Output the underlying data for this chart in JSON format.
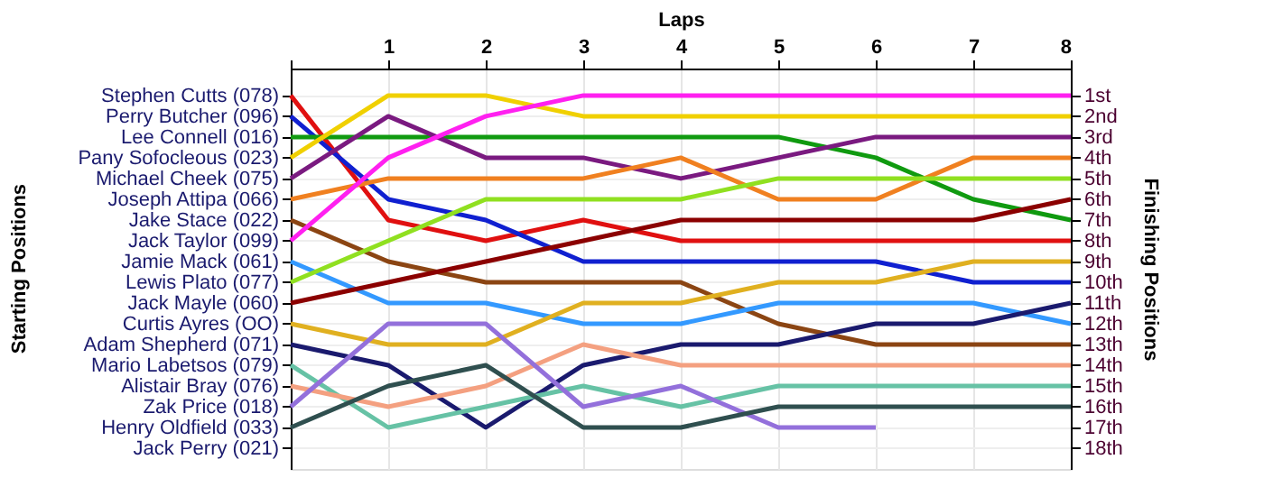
{
  "chart_data": {
    "type": "line",
    "xlabel": "Laps",
    "ylabel": "Finishing Positions",
    "annotations": [
      "Starting Positions"
    ],
    "x": [
      0,
      1,
      2,
      3,
      4,
      5,
      6,
      7,
      8
    ],
    "xlim": [
      0,
      8
    ],
    "xticks": [
      {
        "value": 0,
        "label": null
      },
      1,
      2,
      3,
      4,
      5,
      6,
      7,
      8
    ],
    "ylim": [
      19,
      -0.3
    ],
    "yticks": [
      {
        "value": 1,
        "label": "1st"
      },
      {
        "value": 2,
        "label": "2nd"
      },
      {
        "value": 3,
        "label": "3rd"
      },
      {
        "value": 4,
        "label": "4th"
      },
      {
        "value": 5,
        "label": "5th"
      },
      {
        "value": 6,
        "label": "6th"
      },
      {
        "value": 7,
        "label": "7th"
      },
      {
        "value": 8,
        "label": "8th"
      },
      {
        "value": 9,
        "label": "9th"
      },
      {
        "value": 10,
        "label": "10th"
      },
      {
        "value": 11,
        "label": "11th"
      },
      {
        "value": 12,
        "label": "12th"
      },
      {
        "value": 13,
        "label": "13th"
      },
      {
        "value": 14,
        "label": "14th"
      },
      {
        "value": 15,
        "label": "15th"
      },
      {
        "value": 16,
        "label": "16th"
      },
      {
        "value": 17,
        "label": "17th"
      },
      {
        "value": 18,
        "label": "18th"
      }
    ],
    "y2_categories": [
      "Stephen Cutts (078)",
      "Perry Butcher (096)",
      "Lee Connell (016)",
      "Pany Sofocleous (023)",
      "Michael Cheek (075)",
      "Joseph Attipa (066)",
      "Jake Stace (022)",
      "Jack Taylor (099)",
      "Jamie Mack (061)",
      "Lewis Plato (077)",
      "Jack Mayle (060)",
      "Curtis Ayres (OO)",
      "Adam Shepherd (071)",
      "Mario Labetsos (079)",
      "Alistair Bray (076)",
      "Zak Price (018)",
      "Henry Oldfield (033)",
      "Jack Perry (021)"
    ],
    "grid": true,
    "legend": false,
    "marker": "none",
    "line_style": "solid",
    "series": [
      {
        "color": "#e01010",
        "values": [
          1,
          7,
          8,
          7,
          8,
          8,
          8,
          8,
          8
        ]
      },
      {
        "color": "#1020d0",
        "values": [
          2,
          6,
          7,
          9,
          9,
          9,
          9,
          10,
          10
        ]
      },
      {
        "color": "#109a10",
        "values": [
          3,
          3,
          3,
          3,
          3,
          3,
          4,
          6,
          7
        ]
      },
      {
        "color": "#f0d000",
        "values": [
          4,
          1,
          1,
          2,
          2,
          2,
          2,
          2,
          2
        ]
      },
      {
        "color": "#7a1a80",
        "values": [
          5,
          2,
          4,
          4,
          5,
          4,
          3,
          3,
          3
        ]
      },
      {
        "color": "#f08020",
        "values": [
          6,
          5,
          5,
          5,
          4,
          6,
          6,
          4,
          4
        ]
      },
      {
        "color": "#8b4513",
        "values": [
          7,
          9,
          10,
          10,
          10,
          12,
          13,
          13,
          13
        ]
      },
      {
        "color": "#ff20f0",
        "values": [
          8,
          4,
          2,
          1,
          1,
          1,
          1,
          1,
          1
        ]
      },
      {
        "color": "#3399ff",
        "values": [
          9,
          11,
          11,
          12,
          12,
          11,
          11,
          11,
          12
        ]
      },
      {
        "color": "#90e020",
        "values": [
          10,
          8,
          6,
          6,
          6,
          5,
          5,
          5,
          5
        ]
      },
      {
        "color": "#8b0000",
        "values": [
          11,
          10,
          9,
          8,
          7,
          7,
          7,
          7,
          6
        ]
      },
      {
        "color": "#e0b020",
        "values": [
          12,
          13,
          13,
          11,
          11,
          10,
          10,
          9,
          9
        ]
      },
      {
        "color": "#1a1a6e",
        "values": [
          13,
          14,
          17,
          14,
          13,
          13,
          12,
          12,
          11
        ]
      },
      {
        "color": "#66c2a5",
        "values": [
          14,
          17,
          16,
          15,
          16,
          15,
          15,
          15,
          15
        ]
      },
      {
        "color": "#f4a080",
        "values": [
          15,
          16,
          15,
          13,
          14,
          14,
          14,
          14,
          14
        ]
      },
      {
        "color": "#9370db",
        "values": [
          16,
          12,
          12,
          16,
          15,
          17,
          17,
          null,
          null
        ]
      },
      {
        "color": "#2f4f4f",
        "values": [
          17,
          15,
          14,
          17,
          17,
          16,
          16,
          16,
          16
        ]
      }
    ]
  }
}
